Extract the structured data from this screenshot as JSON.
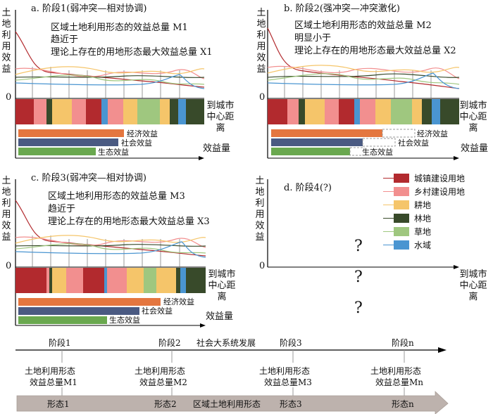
{
  "panels": {
    "a": {
      "title": "a. 阶段1(弱冲突—相对协调)",
      "desc": [
        "区域土地利用形态的效益总量 M1",
        "趋近于",
        "理论上存在的用地形态最大效益总量 X1"
      ]
    },
    "b": {
      "title": "b. 阶段2(强冲突—冲突激化)",
      "desc": [
        "区域土地利用形态的效益总量 M2",
        "明显小于",
        "理论上存在的用地形态最大效益总量 X2"
      ]
    },
    "c": {
      "title": "c. 阶段3(弱冲突—相对协调)",
      "desc": [
        "区域土地利用形态的效益总量 M3",
        "趋近于",
        "理论上存在的用地形态最大效益总量 X3"
      ]
    },
    "d": {
      "title": "d. 阶段4(?)",
      "question": "?"
    }
  },
  "axis": {
    "ylabel": "土地利用效益",
    "zero": "0",
    "xlabel": "到城市中心距离",
    "benefit_total": "效益量"
  },
  "benefits": {
    "economic": "经济效益",
    "social": "社会效益",
    "ecological": "生态效益"
  },
  "legend": [
    {
      "label": "城镇建设用地",
      "color": "#b22a2e"
    },
    {
      "label": "乡村建设用地",
      "color": "#f28f8f"
    },
    {
      "label": "耕地",
      "color": "#f5c56a"
    },
    {
      "label": "林地",
      "color": "#384a2a"
    },
    {
      "label": "草地",
      "color": "#9fc77f"
    },
    {
      "label": "水域",
      "color": "#4a95d1"
    }
  ],
  "timeline": {
    "stages": [
      "阶段1",
      "阶段2",
      "阶段3",
      "阶段n"
    ],
    "center": "社会大系统发展",
    "totals": [
      [
        "土地利用形态",
        "效益总量M1"
      ],
      [
        "土地利用形态",
        "效益总量M2"
      ],
      [
        "土地利用形态",
        "效益总量M3"
      ],
      [
        "土地利用形态",
        "效益总量Mn"
      ]
    ],
    "forms": [
      "形态1",
      "形态2",
      "形态3",
      "形态n"
    ],
    "arrow_label": "区域土地利用形态"
  }
}
